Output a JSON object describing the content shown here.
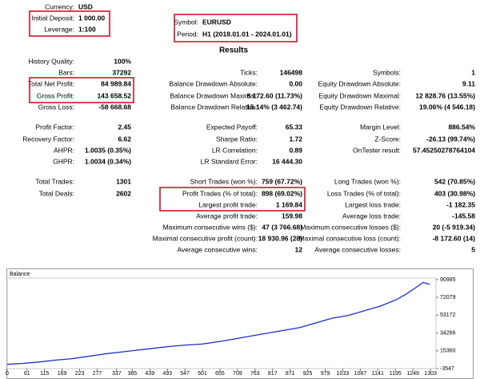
{
  "header": {
    "left": [
      {
        "label": "Currency:",
        "value": "USD"
      },
      {
        "label": "Initial Deposit:",
        "value": "1 000.00"
      },
      {
        "label": "Leverage:",
        "value": "1:100"
      }
    ],
    "right": [
      {
        "label": "Symbol:",
        "value": "EURUSD"
      },
      {
        "label": "Period:",
        "value": "H1 (2018.01.01 - 2024.01.01)"
      }
    ]
  },
  "title": "Results",
  "rows": [
    {
      "left": {
        "label": "History Quality:",
        "value": "100%"
      }
    },
    {
      "left": {
        "label": "Bars:",
        "value": "37292"
      },
      "middle": {
        "label": "Ticks:",
        "value": "146498"
      },
      "right": {
        "label": "Symbols:",
        "value": "1"
      }
    },
    {
      "left": {
        "label": "Total Net Profit:",
        "value": "84 989.84"
      },
      "middle": {
        "label": "Balance Drawdown Absolute:",
        "value": "0.00"
      },
      "right": {
        "label": "Equity Drawdown Absolute:",
        "value": "9.11"
      }
    },
    {
      "left": {
        "label": "Gross Profit:",
        "value": "143 658.52"
      },
      "middle": {
        "label": "Balance Drawdown Maximal:",
        "value": "8 172.60 (11.73%)"
      },
      "right": {
        "label": "Equity Drawdown Maximal:",
        "value": "12 828.76 (13.55%)"
      }
    },
    {
      "left": {
        "label": "Gross Loss:",
        "value": "-58 668.68"
      },
      "middle": {
        "label": "Balance Drawdown Relative:",
        "value": "15.14% (3 462.74)"
      },
      "right": {
        "label": "Equity Drawdown Relative:",
        "value": "19.06% (4 546.18)"
      }
    },
    {
      "left": {
        "label": "Profit Factor:",
        "value": "2.45"
      },
      "middle": {
        "label": "Expected Payoff:",
        "value": "65.33"
      },
      "right": {
        "label": "Margin Level:",
        "value": "886.54%"
      }
    },
    {
      "left": {
        "label": "Recovery Factor:",
        "value": "6.62"
      },
      "middle": {
        "label": "Sharpe Ratio:",
        "value": "1.72"
      },
      "right": {
        "label": "Z-Score:",
        "value": "-26.13 (99.74%)"
      }
    },
    {
      "left": {
        "label": "AHPR:",
        "value": "1.0035 (0.35%)"
      },
      "middle": {
        "label": "LR Correlation:",
        "value": "0.89"
      },
      "right": {
        "label": "OnTester result:",
        "value": "57.45250278764104"
      }
    },
    {
      "left": {
        "label": "GHPR:",
        "value": "1.0034 (0.34%)"
      },
      "middle": {
        "label": "LR Standard Error:",
        "value": "16 444.30"
      }
    },
    {
      "left": {
        "label": "Total Trades:",
        "value": "1301"
      },
      "middle": {
        "label": "Short Trades (won %):",
        "value": "759 (67.72%)"
      },
      "right": {
        "label": "Long Trades (won %):",
        "value": "542 (70.85%)"
      }
    },
    {
      "left": {
        "label": "Total Deals:",
        "value": "2602"
      },
      "middle": {
        "label": "Profit Trades (% of total):",
        "value": "898 (69.02%)"
      },
      "right": {
        "label": "Loss Trades (% of total):",
        "value": "403 (30.98%)"
      }
    },
    {
      "middle": {
        "label": "Largest profit trade:",
        "value": "1 169.84"
      },
      "right": {
        "label": "Largest loss trade:",
        "value": "-1 182.35"
      }
    },
    {
      "middle": {
        "label": "Average profit trade:",
        "value": "159.98"
      },
      "right": {
        "label": "Average loss trade:",
        "value": "-145.58"
      }
    },
    {
      "middle": {
        "label": "Maximum consecutive wins ($):",
        "value": "47 (3 766.68)"
      },
      "right": {
        "label": "Maximum consecutive losses ($):",
        "value": "20 (-5 919.34)"
      }
    },
    {
      "middle": {
        "label": "Maximal consecutive profit (count):",
        "value": "18 930.96 (28)"
      },
      "right": {
        "label": "Maximal consecutive loss (count):",
        "value": "-8 172.60 (14)"
      }
    },
    {
      "middle": {
        "label": "Average consecutive wins:",
        "value": "12"
      },
      "right": {
        "label": "Average consecutive losses:",
        "value": "5"
      }
    }
  ],
  "chart_data": {
    "type": "line",
    "title": "Balance",
    "color": "#1c2fc4",
    "x": [
      0,
      50,
      100,
      150,
      200,
      250,
      300,
      350,
      400,
      450,
      500,
      550,
      600,
      650,
      700,
      750,
      800,
      850,
      900,
      950,
      1000,
      1050,
      1100,
      1150,
      1200,
      1230,
      1260,
      1280,
      1301
    ],
    "values": [
      1000,
      2000,
      3500,
      5500,
      7000,
      9500,
      12000,
      14000,
      16000,
      18000,
      20000,
      21500,
      22500,
      25000,
      28000,
      31000,
      34000,
      37000,
      40000,
      45000,
      50000,
      53000,
      58000,
      63000,
      70000,
      76000,
      83000,
      88000,
      86000
    ],
    "xlim": [
      0,
      1320
    ],
    "ylim": [
      -3547,
      90985
    ],
    "xticks": [
      0,
      61,
      115,
      169,
      223,
      277,
      337,
      385,
      439,
      493,
      547,
      601,
      655,
      709,
      763,
      817,
      871,
      925,
      979,
      1033,
      1087,
      1141,
      1195,
      1249,
      1303
    ],
    "yticks": [
      90985,
      72079,
      53172,
      34266,
      15360,
      -3547
    ]
  }
}
